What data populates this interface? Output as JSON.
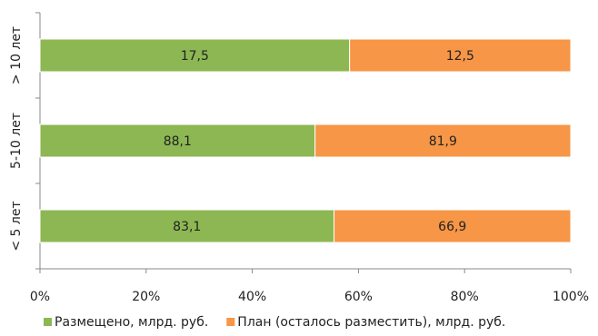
{
  "chart_data": {
    "type": "bar",
    "orientation": "horizontal",
    "stacking": "percent",
    "categories": [
      "> 10 лет",
      "5-10 лет",
      "< 5 лет"
    ],
    "series": [
      {
        "name": "Размещено, млрд. руб.",
        "color": "#8db753",
        "values": [
          17.5,
          88.1,
          83.1
        ],
        "value_labels": [
          "17,5",
          "88,1",
          "83,1"
        ]
      },
      {
        "name": "План (осталось разместить), млрд. руб.",
        "color": "#f79646",
        "values": [
          12.5,
          81.9,
          66.9
        ],
        "value_labels": [
          "12,5",
          "81,9",
          "66,9"
        ]
      }
    ],
    "xlim": [
      0,
      100
    ],
    "xticks": [
      {
        "value": 0,
        "label": "0%"
      },
      {
        "value": 20,
        "label": "20%"
      },
      {
        "value": 40,
        "label": "40%"
      },
      {
        "value": 60,
        "label": "60%"
      },
      {
        "value": 80,
        "label": "80%"
      },
      {
        "value": 100,
        "label": "100%"
      }
    ],
    "legend": "bottom"
  }
}
